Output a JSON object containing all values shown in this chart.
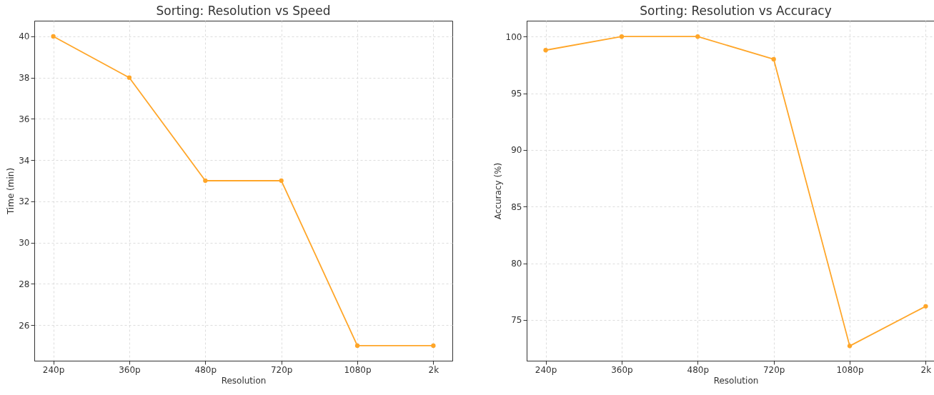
{
  "chart_data": [
    {
      "type": "line",
      "title": "Sorting: Resolution vs Speed",
      "xlabel": "Resolution",
      "ylabel": "Time (min)",
      "categories": [
        "240p",
        "360p",
        "480p",
        "720p",
        "1080p",
        "2k"
      ],
      "series": [
        {
          "color": "#ffa629",
          "values": [
            40,
            38,
            33,
            33,
            25,
            25
          ]
        }
      ],
      "ylim": [
        24.27,
        40.76
      ],
      "yticks": [
        26,
        28,
        30,
        32,
        34,
        36,
        38,
        40
      ],
      "grid": true,
      "marker": "circle",
      "line_style": "solid"
    },
    {
      "type": "line",
      "title": "Sorting: Resolution vs Accuracy",
      "xlabel": "Resolution",
      "ylabel": "Accuracy (%)",
      "categories": [
        "240p",
        "360p",
        "480p",
        "720p",
        "1080p",
        "2k"
      ],
      "series": [
        {
          "color": "#ffa629",
          "values": [
            98.8,
            100,
            100,
            98,
            72.7,
            76.2
          ]
        }
      ],
      "ylim": [
        71.4,
        101.4
      ],
      "yticks": [
        75,
        80,
        85,
        90,
        95,
        100
      ],
      "grid": true,
      "marker": "circle",
      "line_style": "solid"
    }
  ]
}
